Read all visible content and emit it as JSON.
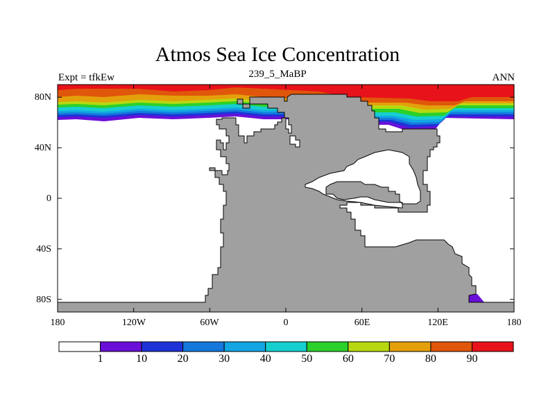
{
  "header": {
    "title": "Atmos Sea Ice Concentration",
    "subtitle": "239_5_MaBP",
    "left_label": "Expt = tfkEw",
    "right_label": "ANN"
  },
  "map": {
    "projection": "cylindrical equidistant",
    "lon_range": [
      -180,
      180
    ],
    "lat_range": [
      -90,
      90
    ],
    "lat_ticks": [
      "80N",
      "40N",
      "0",
      "40S",
      "80S"
    ],
    "lon_ticks": [
      "180",
      "120W",
      "60W",
      "0",
      "60E",
      "120E",
      "180"
    ],
    "land_color": "#a0a0a0",
    "missing_color": "#ffffff"
  },
  "colorbar": {
    "labels": [
      "1",
      "10",
      "20",
      "30",
      "40",
      "50",
      "60",
      "70",
      "80",
      "90"
    ],
    "colors": [
      "#ffffff",
      "#6a10d8",
      "#1e32d8",
      "#1478dc",
      "#13a6e3",
      "#15cfcf",
      "#2bd029",
      "#b7d811",
      "#e4a00b",
      "#e0560b",
      "#e8121a"
    ]
  }
}
